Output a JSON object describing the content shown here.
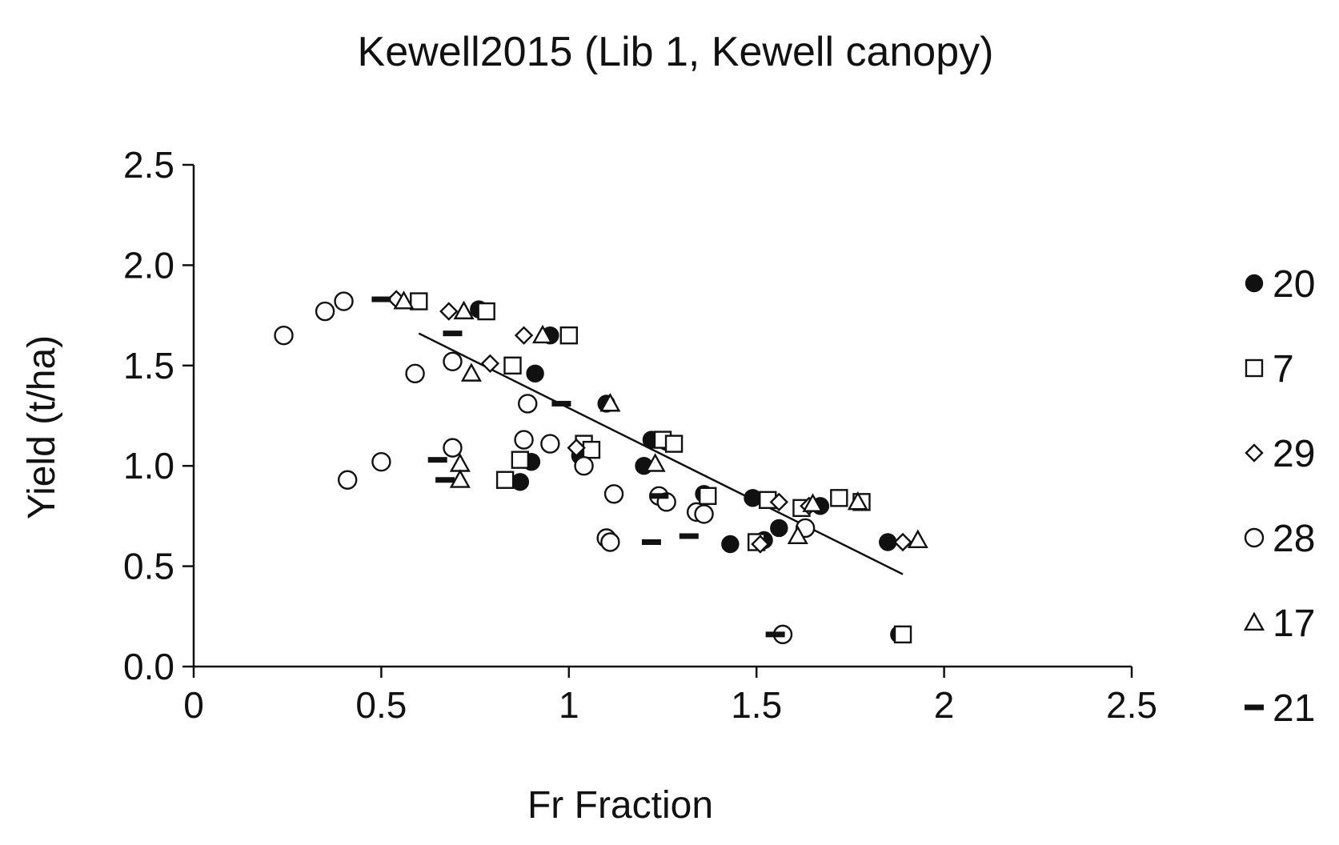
{
  "chart_data": {
    "type": "scatter",
    "title": "Kewell2015 (Lib 1, Kewell canopy)",
    "xlabel": "Fr Fraction",
    "ylabel": "Yield (t/ha)",
    "xlim": [
      0,
      2.5
    ],
    "ylim": [
      0,
      2.5
    ],
    "x_ticks": [
      "0",
      "0.5",
      "1",
      "1.5",
      "2",
      "2.5"
    ],
    "y_ticks": [
      "0.0",
      "0.5",
      "1.0",
      "1.5",
      "2.0",
      "2.5"
    ],
    "x_tick_values": [
      0,
      0.5,
      1,
      1.5,
      2,
      2.5
    ],
    "y_tick_values": [
      0,
      0.5,
      1,
      1.5,
      2,
      2.5
    ],
    "grid": false,
    "legend_position": "right",
    "trendline": {
      "x": [
        0.6,
        1.89
      ],
      "y": [
        1.66,
        0.46
      ]
    },
    "series": [
      {
        "name": "20",
        "marker": "filled-circle",
        "x": [
          0.76,
          0.95,
          0.91,
          1.1,
          1.03,
          0.9,
          0.87,
          1.22,
          1.26,
          1.2,
          1.36,
          1.49,
          1.43,
          1.52,
          1.56,
          1.67,
          1.85,
          1.88
        ],
        "y": [
          1.78,
          1.65,
          1.46,
          1.31,
          1.05,
          1.02,
          0.92,
          1.13,
          1.12,
          1.0,
          0.86,
          0.84,
          0.61,
          0.63,
          0.69,
          0.8,
          0.62,
          0.16
        ]
      },
      {
        "name": "7",
        "marker": "open-square",
        "x": [
          0.6,
          0.78,
          0.85,
          1.0,
          1.04,
          1.06,
          0.87,
          0.83,
          1.25,
          1.28,
          1.37,
          1.53,
          1.62,
          1.72,
          1.78,
          1.5,
          1.89
        ],
        "y": [
          1.82,
          1.77,
          1.5,
          1.65,
          1.11,
          1.08,
          1.03,
          0.93,
          1.13,
          1.11,
          0.85,
          0.83,
          0.79,
          0.84,
          0.82,
          0.62,
          0.16
        ]
      },
      {
        "name": "29",
        "marker": "open-diamond",
        "x": [
          0.54,
          0.68,
          0.88,
          0.79,
          1.02,
          1.56,
          1.64,
          1.89,
          1.51
        ],
        "y": [
          1.83,
          1.77,
          1.65,
          1.51,
          1.09,
          0.82,
          0.8,
          0.62,
          0.61
        ]
      },
      {
        "name": "28",
        "marker": "open-circle",
        "x": [
          0.24,
          0.35,
          0.4,
          0.59,
          0.69,
          0.89,
          0.88,
          0.95,
          0.69,
          0.5,
          0.41,
          1.04,
          1.12,
          1.1,
          1.11,
          1.24,
          1.26,
          1.34,
          1.36,
          1.63,
          1.57
        ],
        "y": [
          1.65,
          1.77,
          1.82,
          1.46,
          1.52,
          1.31,
          1.13,
          1.11,
          1.09,
          1.02,
          0.93,
          1.0,
          0.86,
          0.64,
          0.62,
          0.85,
          0.82,
          0.77,
          0.76,
          0.69,
          0.16
        ]
      },
      {
        "name": "17",
        "marker": "open-triangle",
        "x": [
          0.56,
          0.72,
          0.93,
          0.74,
          0.71,
          0.71,
          1.11,
          1.23,
          1.61,
          1.65,
          1.77,
          1.93
        ],
        "y": [
          1.82,
          1.77,
          1.65,
          1.46,
          1.01,
          0.93,
          1.31,
          1.01,
          0.65,
          0.81,
          0.82,
          0.63
        ]
      },
      {
        "name": "21",
        "marker": "dash",
        "x": [
          0.5,
          0.69,
          0.98,
          1.24,
          0.65,
          0.67,
          1.22,
          1.32,
          1.55
        ],
        "y": [
          1.83,
          1.66,
          1.31,
          0.85,
          1.03,
          0.93,
          0.62,
          0.65,
          0.16
        ]
      }
    ]
  },
  "colors": {
    "ink": "#111111",
    "background": "#ffffff"
  }
}
